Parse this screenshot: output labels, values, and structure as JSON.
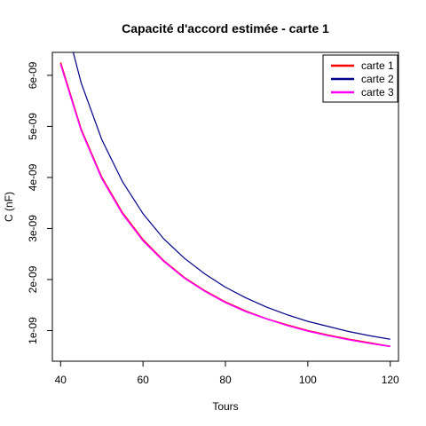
{
  "chart_data": {
    "type": "line",
    "title": "Capacité d'accord estimée - carte 1",
    "xlabel": "Tours",
    "ylabel": "C (nF)",
    "xlim": [
      38,
      122
    ],
    "ylim": [
      4e-10,
      6.45e-09
    ],
    "xticks": [
      40,
      60,
      80,
      100,
      120
    ],
    "xtick_labels": [
      "40",
      "60",
      "80",
      "100",
      "120"
    ],
    "yticks": [
      1e-09,
      2e-09,
      3e-09,
      4e-09,
      5e-09,
      6e-09
    ],
    "ytick_labels": [
      "1e-09",
      "2e-09",
      "3e-09",
      "4e-09",
      "5e-09",
      "6e-09"
    ],
    "grid": false,
    "legend_position": "top-right",
    "series": [
      {
        "name": "carte 1",
        "color": "#ff0000",
        "x": [
          40,
          45,
          50,
          55,
          60,
          65,
          70,
          75,
          80,
          85,
          90,
          95,
          100,
          105,
          110,
          115,
          120
        ],
        "y": [
          6.25e-09,
          4.94e-09,
          4e-09,
          3.31e-09,
          2.78e-09,
          2.37e-09,
          2.04e-09,
          1.78e-09,
          1.56e-09,
          1.38e-09,
          1.23e-09,
          1.11e-09,
          1e-09,
          9.1e-10,
          8.3e-10,
          7.6e-10,
          6.9e-10
        ]
      },
      {
        "name": "carte 2",
        "color": "#00008b",
        "x": [
          40,
          45,
          50,
          55,
          60,
          65,
          70,
          75,
          80,
          85,
          90,
          95,
          100,
          105,
          110,
          115,
          120
        ],
        "y": [
          7.4e-09,
          5.85e-09,
          4.74e-09,
          3.92e-09,
          3.29e-09,
          2.8e-09,
          2.42e-09,
          2.11e-09,
          1.85e-09,
          1.64e-09,
          1.46e-09,
          1.31e-09,
          1.18e-09,
          1.08e-09,
          9.8e-10,
          9e-10,
          8.3e-10
        ]
      },
      {
        "name": "carte 3",
        "color": "#ff00ff",
        "x": [
          40,
          45,
          50,
          55,
          60,
          65,
          70,
          75,
          80,
          85,
          90,
          95,
          100,
          105,
          110,
          115,
          120
        ],
        "y": [
          6.22e-09,
          4.92e-09,
          3.98e-09,
          3.29e-09,
          2.76e-09,
          2.36e-09,
          2.03e-09,
          1.77e-09,
          1.55e-09,
          1.37e-09,
          1.23e-09,
          1.1e-09,
          9.9e-10,
          9e-10,
          8.2e-10,
          7.5e-10,
          6.9e-10
        ]
      }
    ]
  }
}
